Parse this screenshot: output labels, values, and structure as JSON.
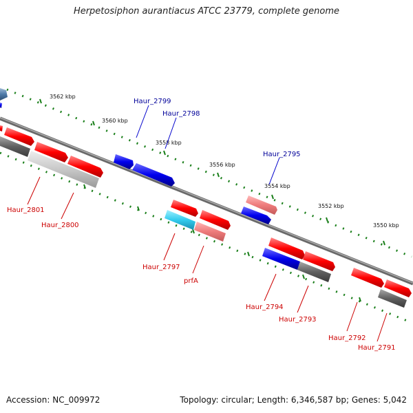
{
  "title": "Herpetosiphon aurantiacus ATCC 23779, complete genome",
  "accession": "Accession: NC_009972",
  "topology": "Topology: circular; Length: 6,346,587 bp; Genes: 5,042",
  "colors": {
    "forward": "#ff0000",
    "reverse": "#0000ee",
    "forward_light": "#f08080",
    "reverse_light": "#33ccee",
    "pseudo": "#606060",
    "pseudo_light": "#c8c8c8",
    "ruler_dots": "#1a7f1a",
    "backbone": "#808080"
  },
  "ruler_ticks": [
    "3562 kbp",
    "3560 kbp",
    "3558 kbp",
    "3556 kbp",
    "3554 kbp",
    "3552 kbp",
    "3550 kbp"
  ],
  "gene_labels": {
    "top": [
      "Haur_2799",
      "Haur_2798",
      "Haur_2795"
    ],
    "bottom": [
      "Haur_2801",
      "Haur_2800",
      "Haur_2797",
      "prfA",
      "Haur_2794",
      "Haur_2793",
      "Haur_2792",
      "Haur_2791"
    ]
  }
}
